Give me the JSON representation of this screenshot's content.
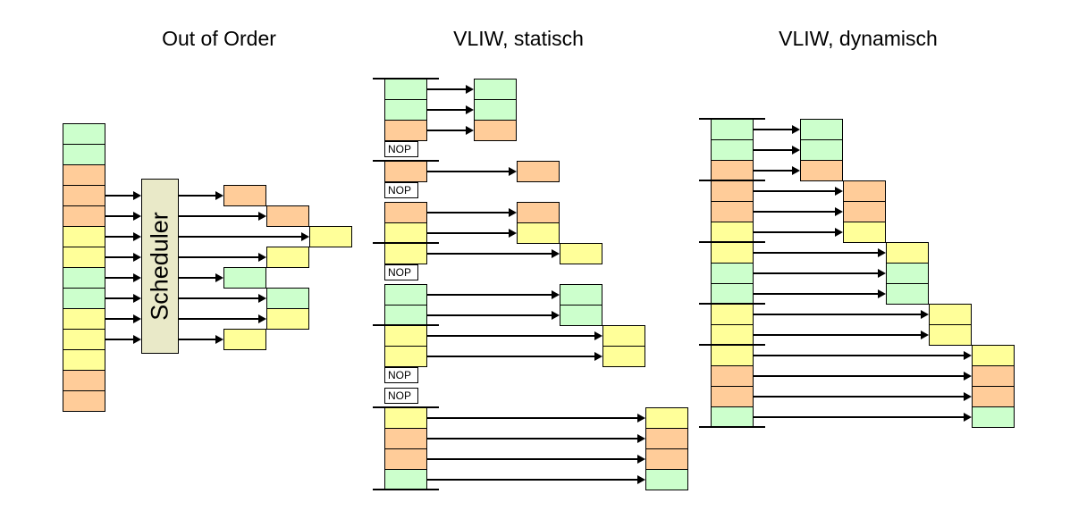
{
  "colors": {
    "green": "#ccffcc",
    "orange": "#ffcc99",
    "yellow": "#ffff99",
    "nop": "#ffffff",
    "scheduler": "#e9e9c8",
    "line": "#000000"
  },
  "panels": {
    "ooo": {
      "title": "Out of Order",
      "scheduler_label": "Scheduler",
      "queue": [
        "green",
        "green",
        "orange",
        "orange",
        "orange",
        "yellow",
        "yellow",
        "green",
        "green",
        "yellow",
        "yellow",
        "yellow",
        "orange",
        "orange"
      ],
      "window_start": 3,
      "window_size": 8,
      "execution": [
        {
          "color": "orange",
          "step": 0
        },
        {
          "color": "orange",
          "step": 1
        },
        {
          "color": "yellow",
          "step": 2
        },
        {
          "color": "yellow",
          "step": 1
        },
        {
          "color": "green",
          "step": 0
        },
        {
          "color": "green",
          "step": 1
        },
        {
          "color": "yellow",
          "step": 1
        },
        {
          "color": "yellow",
          "step": 0
        }
      ]
    },
    "vliw_static": {
      "title": "VLIW, statisch",
      "nop_label": "NOP",
      "slots": [
        "green",
        "green",
        "orange",
        "NOP",
        "orange",
        "NOP",
        "orange",
        "yellow",
        "yellow",
        "NOP",
        "green",
        "green",
        "yellow",
        "yellow",
        "NOP",
        "NOP",
        "yellow",
        "orange",
        "orange",
        "green"
      ],
      "bundle_boundaries": [
        0,
        4,
        8,
        12,
        16,
        20
      ]
    },
    "vliw_dynamic": {
      "title": "VLIW, dynamisch",
      "slots": [
        "green",
        "green",
        "orange",
        "orange",
        "orange",
        "yellow",
        "yellow",
        "green",
        "green",
        "yellow",
        "yellow",
        "yellow",
        "orange",
        "orange",
        "green"
      ],
      "group_boundaries": [
        0,
        3,
        6,
        9,
        11,
        15
      ]
    }
  }
}
